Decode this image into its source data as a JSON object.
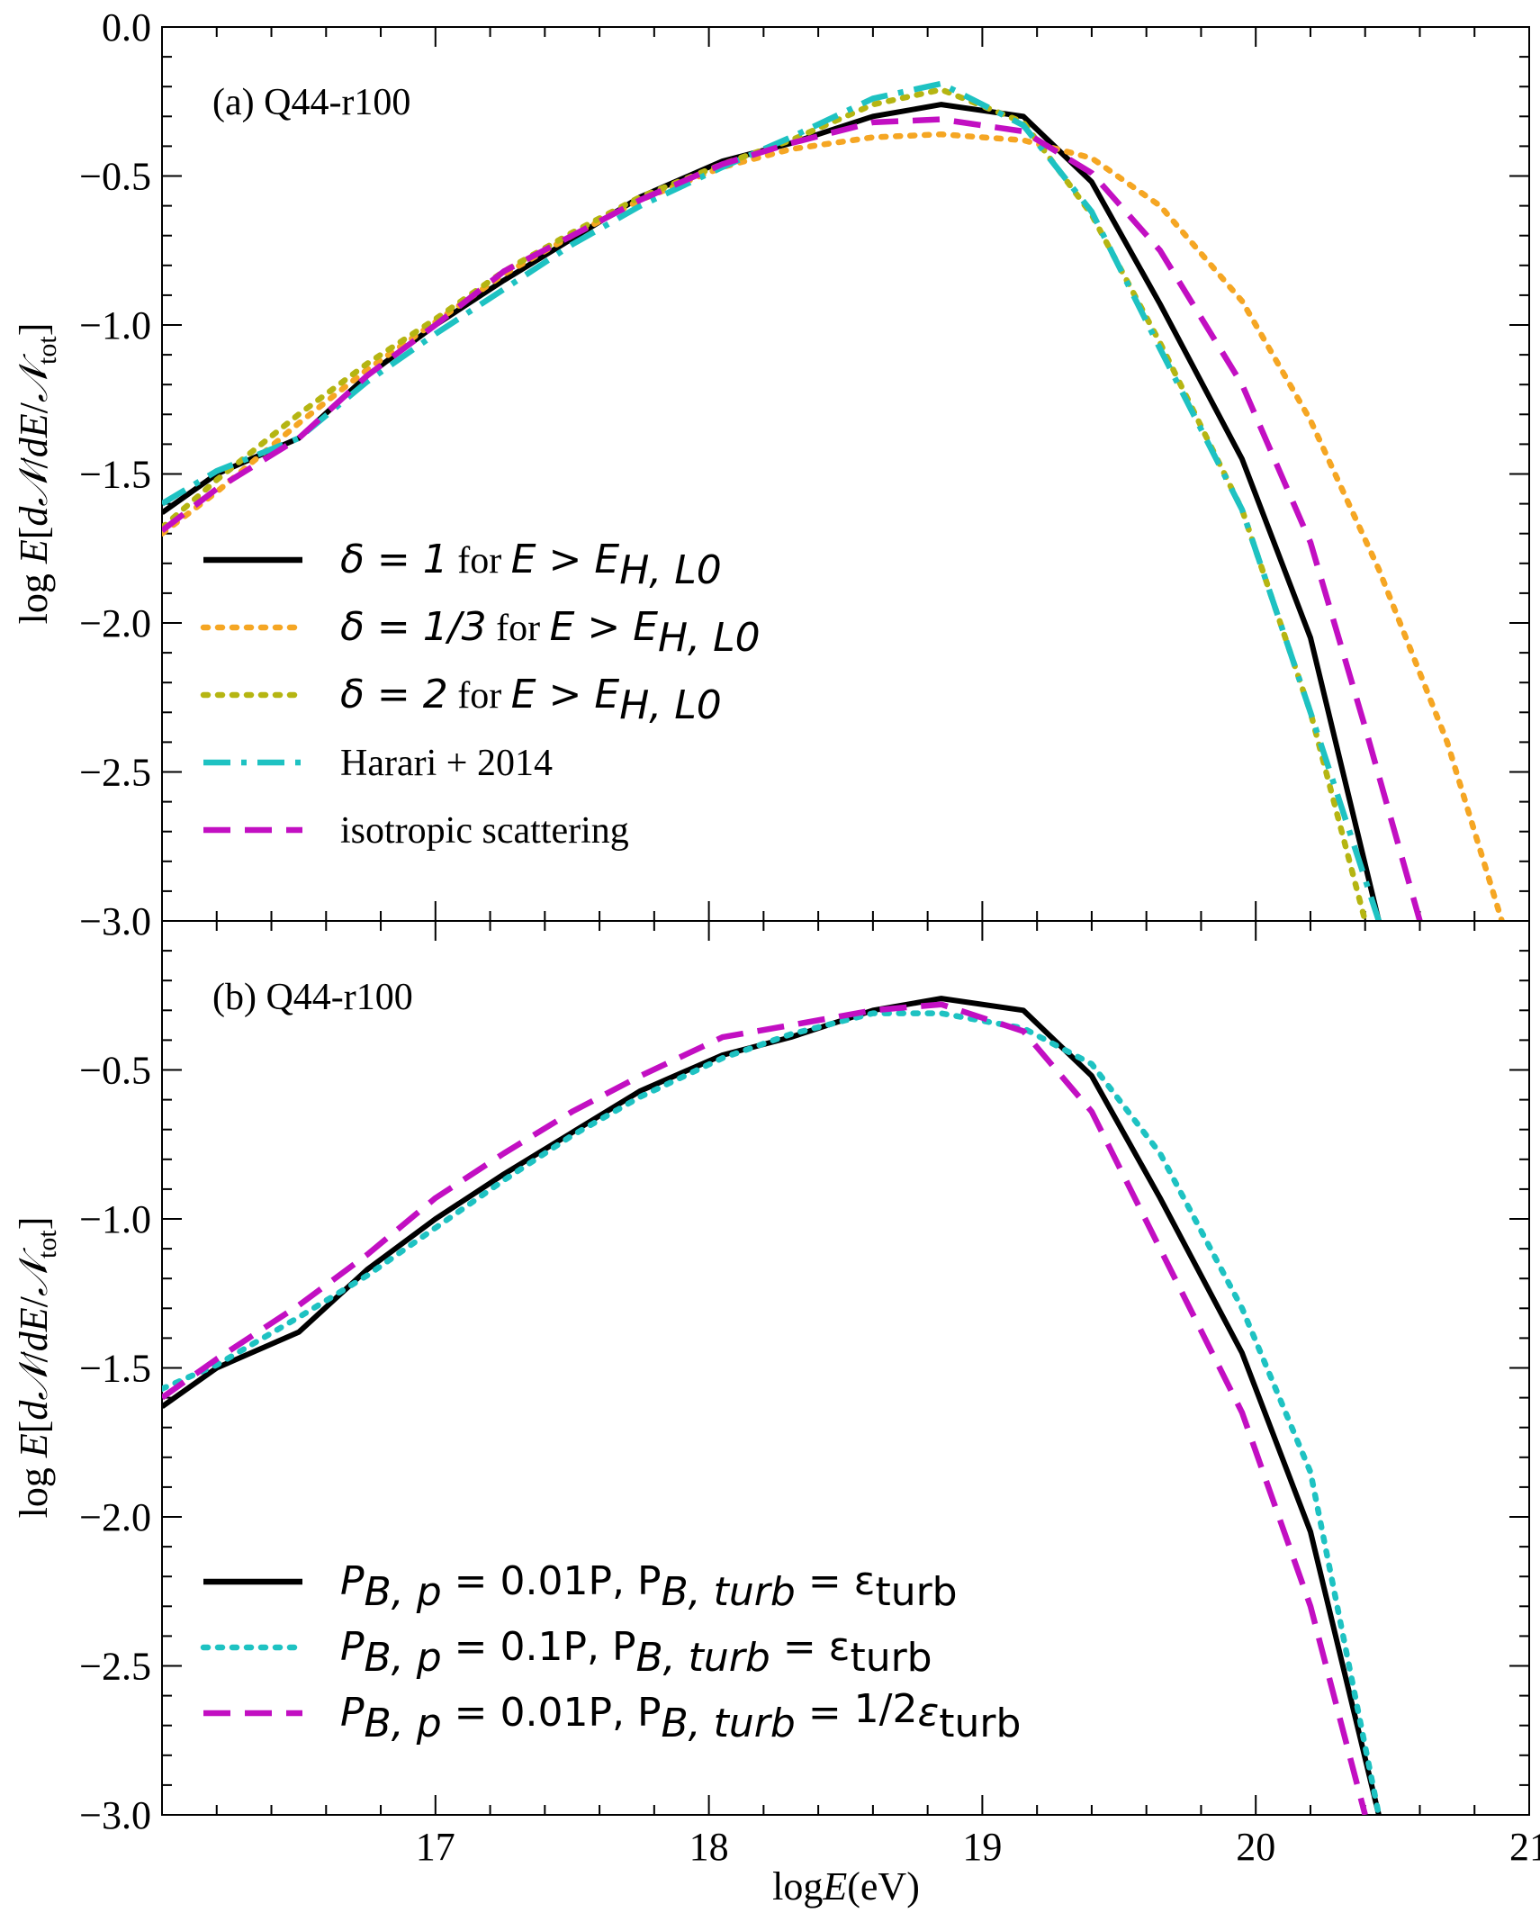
{
  "x_label": "logE(eV)",
  "y_label": "log E[dN/dE/N_tot]",
  "xlim": [
    16.0,
    21.0
  ],
  "x_ticks": [
    17,
    18,
    19,
    20,
    21
  ],
  "chart_data": [
    {
      "type": "line",
      "panel_label": "(a) Q44-r100",
      "xlabel": "",
      "ylabel": "log E[dN/dE/N_tot]",
      "xlim": [
        16.0,
        21.0
      ],
      "ylim": [
        -3.0,
        0.0
      ],
      "y_ticks": [
        "0.0",
        "−0.5",
        "−1.0",
        "−1.5",
        "−2.0",
        "−2.5",
        "−3.0"
      ],
      "legend_position": "left-bottom",
      "series": [
        {
          "name": "δ = 1 for E > E_H,L0",
          "legend_math": "δ = 1",
          "legend_text": " for ",
          "legend_math2": "E > E",
          "legend_sub": "H, L0",
          "color": "#000000",
          "style": "solid",
          "x": [
            16.0,
            16.2,
            16.5,
            16.75,
            17.0,
            17.25,
            17.5,
            17.75,
            18.05,
            18.3,
            18.6,
            18.85,
            19.15,
            19.4,
            19.65,
            19.95,
            20.2,
            20.45
          ],
          "y": [
            -1.63,
            -1.5,
            -1.38,
            -1.17,
            -1.0,
            -0.85,
            -0.71,
            -0.57,
            -0.45,
            -0.39,
            -0.3,
            -0.26,
            -0.3,
            -0.52,
            -0.93,
            -1.45,
            -2.05,
            -3.0
          ]
        },
        {
          "name": "δ = 1/3 for E > E_H,L0",
          "legend_math": "δ = 1/3",
          "legend_text": " for ",
          "legend_math2": "E > E",
          "legend_sub": "H, L0",
          "color": "#f5a623",
          "style": "dotted",
          "x": [
            16.0,
            16.2,
            16.5,
            16.75,
            17.0,
            17.25,
            17.5,
            17.75,
            18.05,
            18.3,
            18.6,
            18.85,
            19.15,
            19.4,
            19.65,
            19.95,
            20.2,
            20.45,
            20.7,
            20.9
          ],
          "y": [
            -1.7,
            -1.56,
            -1.33,
            -1.15,
            -0.99,
            -0.83,
            -0.7,
            -0.58,
            -0.47,
            -0.41,
            -0.37,
            -0.36,
            -0.38,
            -0.44,
            -0.6,
            -0.92,
            -1.32,
            -1.82,
            -2.4,
            -3.0
          ]
        },
        {
          "name": "δ = 2 for E > E_H,L0",
          "legend_math": "δ = 2",
          "legend_text": " for ",
          "legend_math2": "E > E",
          "legend_sub": "H, L0",
          "color": "#b5b512",
          "style": "dotted",
          "x": [
            16.0,
            16.2,
            16.5,
            16.75,
            17.0,
            17.25,
            17.5,
            17.75,
            18.05,
            18.3,
            18.6,
            18.85,
            19.15,
            19.4,
            19.65,
            19.95,
            20.2,
            20.4
          ],
          "y": [
            -1.68,
            -1.52,
            -1.3,
            -1.13,
            -0.98,
            -0.82,
            -0.69,
            -0.57,
            -0.46,
            -0.38,
            -0.26,
            -0.21,
            -0.32,
            -0.63,
            -1.06,
            -1.62,
            -2.3,
            -3.0
          ]
        },
        {
          "name": "Harari + 2014",
          "legend_text": "Harari + 2014",
          "color": "#1ec2c2",
          "style": "dashdot",
          "x": [
            16.0,
            16.2,
            16.5,
            16.75,
            17.0,
            17.25,
            17.5,
            17.75,
            18.05,
            18.3,
            18.6,
            18.85,
            19.15,
            19.4,
            19.65,
            19.95,
            20.2,
            20.45
          ],
          "y": [
            -1.6,
            -1.49,
            -1.38,
            -1.19,
            -1.03,
            -0.88,
            -0.73,
            -0.6,
            -0.47,
            -0.37,
            -0.24,
            -0.19,
            -0.33,
            -0.62,
            -1.08,
            -1.62,
            -2.3,
            -3.0
          ]
        },
        {
          "name": "isotropic scattering",
          "legend_text": "isotropic scattering",
          "color": "#c20fc2",
          "style": "dashed",
          "x": [
            16.0,
            16.2,
            16.5,
            16.75,
            17.0,
            17.25,
            17.5,
            17.75,
            18.05,
            18.3,
            18.6,
            18.85,
            19.15,
            19.4,
            19.65,
            19.95,
            20.2,
            20.4,
            20.6
          ],
          "y": [
            -1.69,
            -1.55,
            -1.38,
            -1.17,
            -1.0,
            -0.82,
            -0.7,
            -0.58,
            -0.46,
            -0.39,
            -0.32,
            -0.31,
            -0.35,
            -0.49,
            -0.75,
            -1.2,
            -1.73,
            -2.35,
            -3.0
          ]
        }
      ]
    },
    {
      "type": "line",
      "panel_label": "(b) Q44-r100",
      "xlabel": "logE(eV)",
      "ylabel": "log E[dN/dE/N_tot]",
      "xlim": [
        16.0,
        21.0
      ],
      "ylim": [
        -3.0,
        0.0
      ],
      "y_ticks": [
        "",
        "−0.5",
        "−1.0",
        "−1.5",
        "−2.0",
        "−2.5",
        "−3.0"
      ],
      "x_ticks": [
        "17",
        "18",
        "19",
        "20",
        "21"
      ],
      "legend_position": "left-bottom",
      "series": [
        {
          "name": "P_B,p = 0.01P, P_B,turb = ε_turb",
          "legend_math": "P",
          "legend_sub": "B, p",
          "legend_math2": " = 0.01P, P",
          "legend_sub2": "B, turb",
          "legend_math3": " = ε",
          "legend_sub3": "turb",
          "color": "#000000",
          "style": "solid",
          "x": [
            16.0,
            16.2,
            16.5,
            16.75,
            17.0,
            17.25,
            17.5,
            17.75,
            18.05,
            18.3,
            18.6,
            18.85,
            19.15,
            19.4,
            19.65,
            19.95,
            20.2,
            20.45
          ],
          "y": [
            -1.63,
            -1.5,
            -1.38,
            -1.17,
            -1.0,
            -0.85,
            -0.71,
            -0.57,
            -0.45,
            -0.39,
            -0.3,
            -0.26,
            -0.3,
            -0.52,
            -0.93,
            -1.45,
            -2.05,
            -3.0
          ]
        },
        {
          "name": "P_B,p = 0.1P, P_B,turb = ε_turb",
          "legend_math": "P",
          "legend_sub": "B, p",
          "legend_math2": " = 0.1P, P",
          "legend_sub2": "B, turb",
          "legend_math3": " = ε",
          "legend_sub3": "turb",
          "color": "#1ec2c2",
          "style": "dotted",
          "x": [
            16.0,
            16.2,
            16.5,
            16.75,
            17.0,
            17.25,
            17.5,
            17.75,
            18.05,
            18.3,
            18.6,
            18.85,
            19.15,
            19.4,
            19.65,
            19.95,
            20.2,
            20.45
          ],
          "y": [
            -1.57,
            -1.49,
            -1.33,
            -1.19,
            -1.03,
            -0.87,
            -0.72,
            -0.59,
            -0.46,
            -0.38,
            -0.31,
            -0.31,
            -0.36,
            -0.48,
            -0.78,
            -1.3,
            -1.85,
            -3.0
          ]
        },
        {
          "name": "P_B,p = 0.01P, P_B,turb = 1/2 ε_turb",
          "legend_math": "P",
          "legend_sub": "B, p",
          "legend_math2": " = 0.01P, P",
          "legend_sub2": "B, turb",
          "legend_math3": " = ",
          "legend_frac_num": "1",
          "legend_frac_den": "2",
          "legend_math4": "ε",
          "legend_sub4": "turb",
          "color": "#c20fc2",
          "style": "dashed",
          "x": [
            16.0,
            16.2,
            16.5,
            16.75,
            17.0,
            17.25,
            17.5,
            17.75,
            18.05,
            18.3,
            18.6,
            18.85,
            19.15,
            19.4,
            19.65,
            19.95,
            20.2,
            20.4
          ],
          "y": [
            -1.6,
            -1.47,
            -1.29,
            -1.12,
            -0.93,
            -0.78,
            -0.64,
            -0.52,
            -0.39,
            -0.35,
            -0.3,
            -0.28,
            -0.37,
            -0.64,
            -1.1,
            -1.65,
            -2.3,
            -3.0
          ]
        }
      ]
    }
  ]
}
